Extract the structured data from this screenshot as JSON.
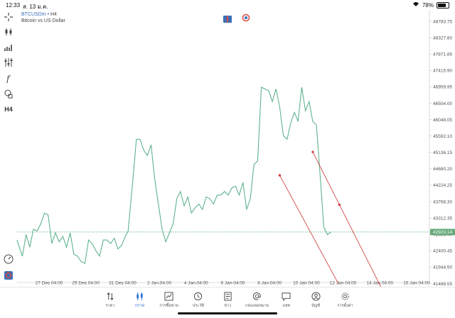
{
  "status_bar": {
    "time": "12:33",
    "date": "ส. 13 ม.ค.",
    "battery_percent": "78%",
    "battery_level": 0.78
  },
  "symbol": {
    "ticker": "BTCUSDm",
    "dot": "•",
    "timeframe": "H4",
    "description": "Bitcoin vs US Dollar"
  },
  "toolbar": {
    "timeframe_label": "H4"
  },
  "current_price": "42923.14",
  "colors": {
    "line": "#5fb38e",
    "trend": "#cc3333",
    "price_line": "#4aa36f",
    "price_badge": "#66aa7a",
    "accent": "#2f6fd0"
  },
  "chart_data": {
    "type": "line",
    "symbol": "BTCUSDm",
    "timeframe": "H4",
    "y_ticks": [
      "48783.75",
      "48327.80",
      "47871.85",
      "47415.90",
      "46959.95",
      "46504.00",
      "46048.05",
      "45592.10",
      "45136.15",
      "44680.20",
      "44224.25",
      "43768.30",
      "43312.35",
      "42856.40",
      "42400.45",
      "41944.50",
      "41488.55"
    ],
    "x_ticks": [
      "27 Dec 04:00",
      "29 Dec 04:00",
      "31 Dec 04:00",
      "2 Jan 04:00",
      "4 Jan 04:00",
      "6 Jan 04:00",
      "8 Jan 04:00",
      "10 Jan 04:00",
      "12 Jan 04:00",
      "14 Jan 04:00",
      "16 Jan 04:00"
    ],
    "ylim": [
      41200,
      49000
    ],
    "xlim": [
      0,
      21.25
    ],
    "current_price": 42923.14,
    "series": [
      {
        "points": [
          [
            0.0,
            42700
          ],
          [
            0.3,
            42250
          ],
          [
            0.5,
            42850
          ],
          [
            0.7,
            42500
          ],
          [
            0.9,
            43000
          ],
          [
            1.1,
            42950
          ],
          [
            1.3,
            43150
          ],
          [
            1.5,
            43450
          ],
          [
            1.7,
            43400
          ],
          [
            1.9,
            42600
          ],
          [
            2.1,
            42900
          ],
          [
            2.3,
            42650
          ],
          [
            2.5,
            42800
          ],
          [
            2.7,
            42500
          ],
          [
            2.9,
            42900
          ],
          [
            3.1,
            42300
          ],
          [
            3.3,
            42250
          ],
          [
            3.5,
            42100
          ],
          [
            3.7,
            42050
          ],
          [
            3.9,
            42700
          ],
          [
            4.1,
            42600
          ],
          [
            4.3,
            42400
          ],
          [
            4.5,
            42250
          ],
          [
            4.7,
            42700
          ],
          [
            4.9,
            42700
          ],
          [
            5.1,
            42600
          ],
          [
            5.3,
            42750
          ],
          [
            5.5,
            42450
          ],
          [
            5.7,
            42550
          ],
          [
            5.9,
            42800
          ],
          [
            6.05,
            42950
          ],
          [
            6.3,
            44300
          ],
          [
            6.5,
            45500
          ],
          [
            6.7,
            45500
          ],
          [
            6.9,
            45200
          ],
          [
            7.1,
            45050
          ],
          [
            7.3,
            45350
          ],
          [
            7.5,
            44400
          ],
          [
            7.7,
            43700
          ],
          [
            7.9,
            43000
          ],
          [
            8.1,
            42650
          ],
          [
            8.3,
            42900
          ],
          [
            8.5,
            43150
          ],
          [
            8.7,
            43850
          ],
          [
            8.9,
            44050
          ],
          [
            9.1,
            43650
          ],
          [
            9.3,
            43900
          ],
          [
            9.5,
            43450
          ],
          [
            9.7,
            43600
          ],
          [
            9.9,
            43700
          ],
          [
            10.1,
            43550
          ],
          [
            10.3,
            43900
          ],
          [
            10.5,
            43850
          ],
          [
            10.7,
            43700
          ],
          [
            10.9,
            43950
          ],
          [
            11.1,
            43950
          ],
          [
            11.3,
            44050
          ],
          [
            11.5,
            43950
          ],
          [
            11.7,
            44150
          ],
          [
            11.9,
            44200
          ],
          [
            12.1,
            43950
          ],
          [
            12.3,
            44300
          ],
          [
            12.5,
            43550
          ],
          [
            12.7,
            43850
          ],
          [
            12.9,
            44800
          ],
          [
            13.1,
            44900
          ],
          [
            13.3,
            46950
          ],
          [
            13.5,
            46900
          ],
          [
            13.7,
            46850
          ],
          [
            13.9,
            46550
          ],
          [
            14.1,
            46900
          ],
          [
            14.3,
            46400
          ],
          [
            14.5,
            45600
          ],
          [
            14.7,
            45500
          ],
          [
            14.9,
            45950
          ],
          [
            15.1,
            46250
          ],
          [
            15.3,
            46000
          ],
          [
            15.5,
            46950
          ],
          [
            15.7,
            46300
          ],
          [
            15.9,
            46550
          ],
          [
            16.1,
            46000
          ],
          [
            16.3,
            45900
          ],
          [
            16.5,
            44500
          ],
          [
            16.7,
            43050
          ],
          [
            16.9,
            42850
          ],
          [
            17.1,
            42923
          ]
        ]
      }
    ],
    "trendlines": [
      {
        "start": [
          14.3,
          44500
        ],
        "end": [
          17.5,
          41480
        ]
      },
      {
        "start": [
          16.1,
          45150
        ],
        "end": [
          19.9,
          41300
        ]
      }
    ]
  },
  "bottom_nav": [
    {
      "label": "ราคา",
      "icon": "quotes-arrows-icon",
      "active": false
    },
    {
      "label": "กราฟ",
      "icon": "candlestick-chart-icon",
      "active": true
    },
    {
      "label": "การซื้อขาย",
      "icon": "trade-chart-icon",
      "active": false
    },
    {
      "label": "ประวัติ",
      "icon": "history-clock-icon",
      "active": false
    },
    {
      "label": "ข่าว",
      "icon": "news-document-icon",
      "active": false
    },
    {
      "label": "กล่องจดหมาย",
      "icon": "mailbox-at-icon",
      "active": false
    },
    {
      "label": "แชท",
      "icon": "chat-bubble-icon",
      "active": false
    },
    {
      "label": "บัญชี",
      "icon": "account-user-icon",
      "active": false
    },
    {
      "label": "การตั้งค่า",
      "icon": "settings-gear-icon",
      "active": false
    }
  ]
}
